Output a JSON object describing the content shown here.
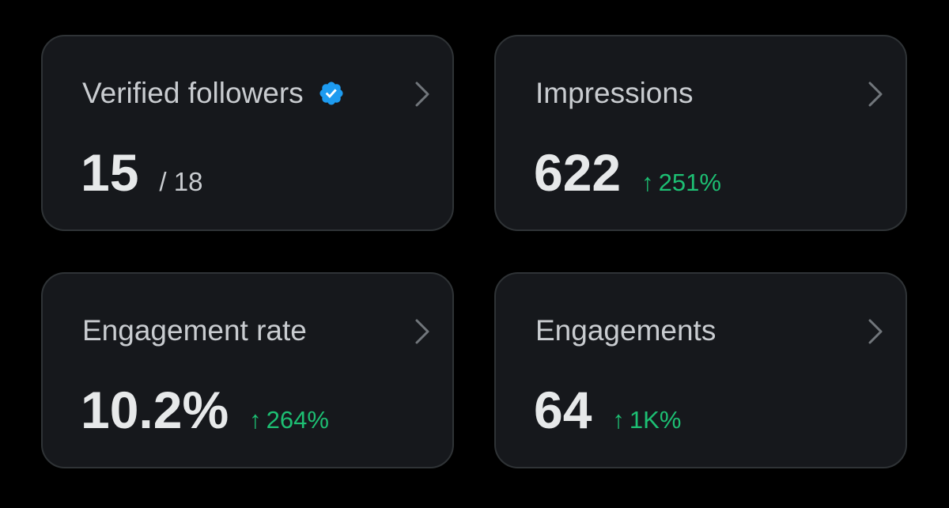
{
  "colors": {
    "background": "#000000",
    "card_bg": "#16181c",
    "card_border": "#2f3336",
    "title_text": "#c9ccd0",
    "value_text": "#e7e9ea",
    "positive_change": "#1dbf73",
    "verified_badge": "#1d9bf0"
  },
  "cards": [
    {
      "title": "Verified followers",
      "title_icon": "verified-badge-icon",
      "value": "15",
      "sub": "/ 18",
      "nav_icon": "chevron-right-icon"
    },
    {
      "title": "Impressions",
      "value": "622",
      "change_arrow": "↑",
      "change": "251%",
      "nav_icon": "chevron-right-icon"
    },
    {
      "title": "Engagement rate",
      "value": "10.2%",
      "change_arrow": "↑",
      "change": "264%",
      "nav_icon": "chevron-right-icon"
    },
    {
      "title": "Engagements",
      "value": "64",
      "change_arrow": "↑",
      "change": "1K%",
      "nav_icon": "chevron-right-icon"
    }
  ]
}
